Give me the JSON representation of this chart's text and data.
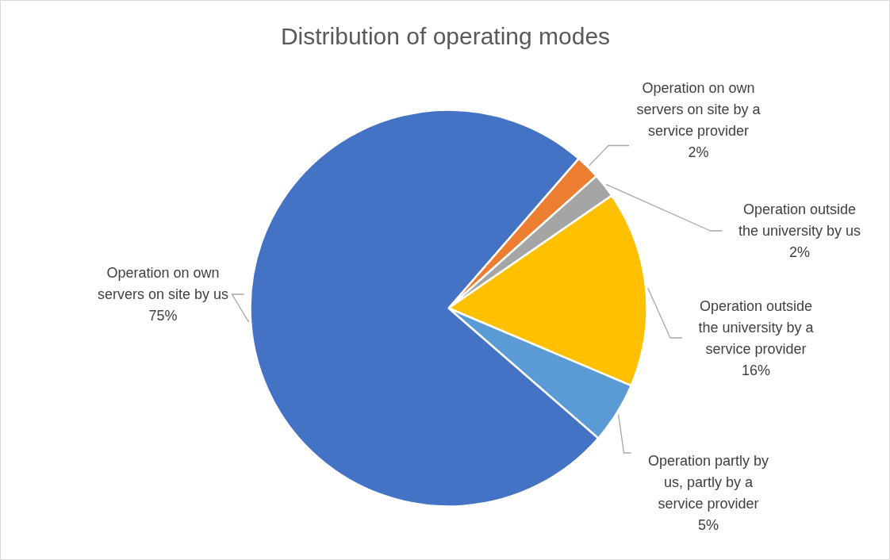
{
  "chart_data": {
    "type": "pie",
    "title": "Distribution of operating modes",
    "categories": [
      "Operation on own servers on site by a service provider",
      "Operation outside the university by us",
      "Operation outside the university by a service provider",
      "Operation partly by us, partly by a service provider",
      "Operation on own servers on site by us"
    ],
    "values": [
      2,
      2,
      16,
      5,
      75
    ],
    "colors": [
      "#ed7d31",
      "#a5a5a5",
      "#ffc000",
      "#5b9bd5",
      "#4472c4"
    ],
    "value_labels": [
      "2%",
      "2%",
      "16%",
      "5%",
      "75%"
    ]
  }
}
